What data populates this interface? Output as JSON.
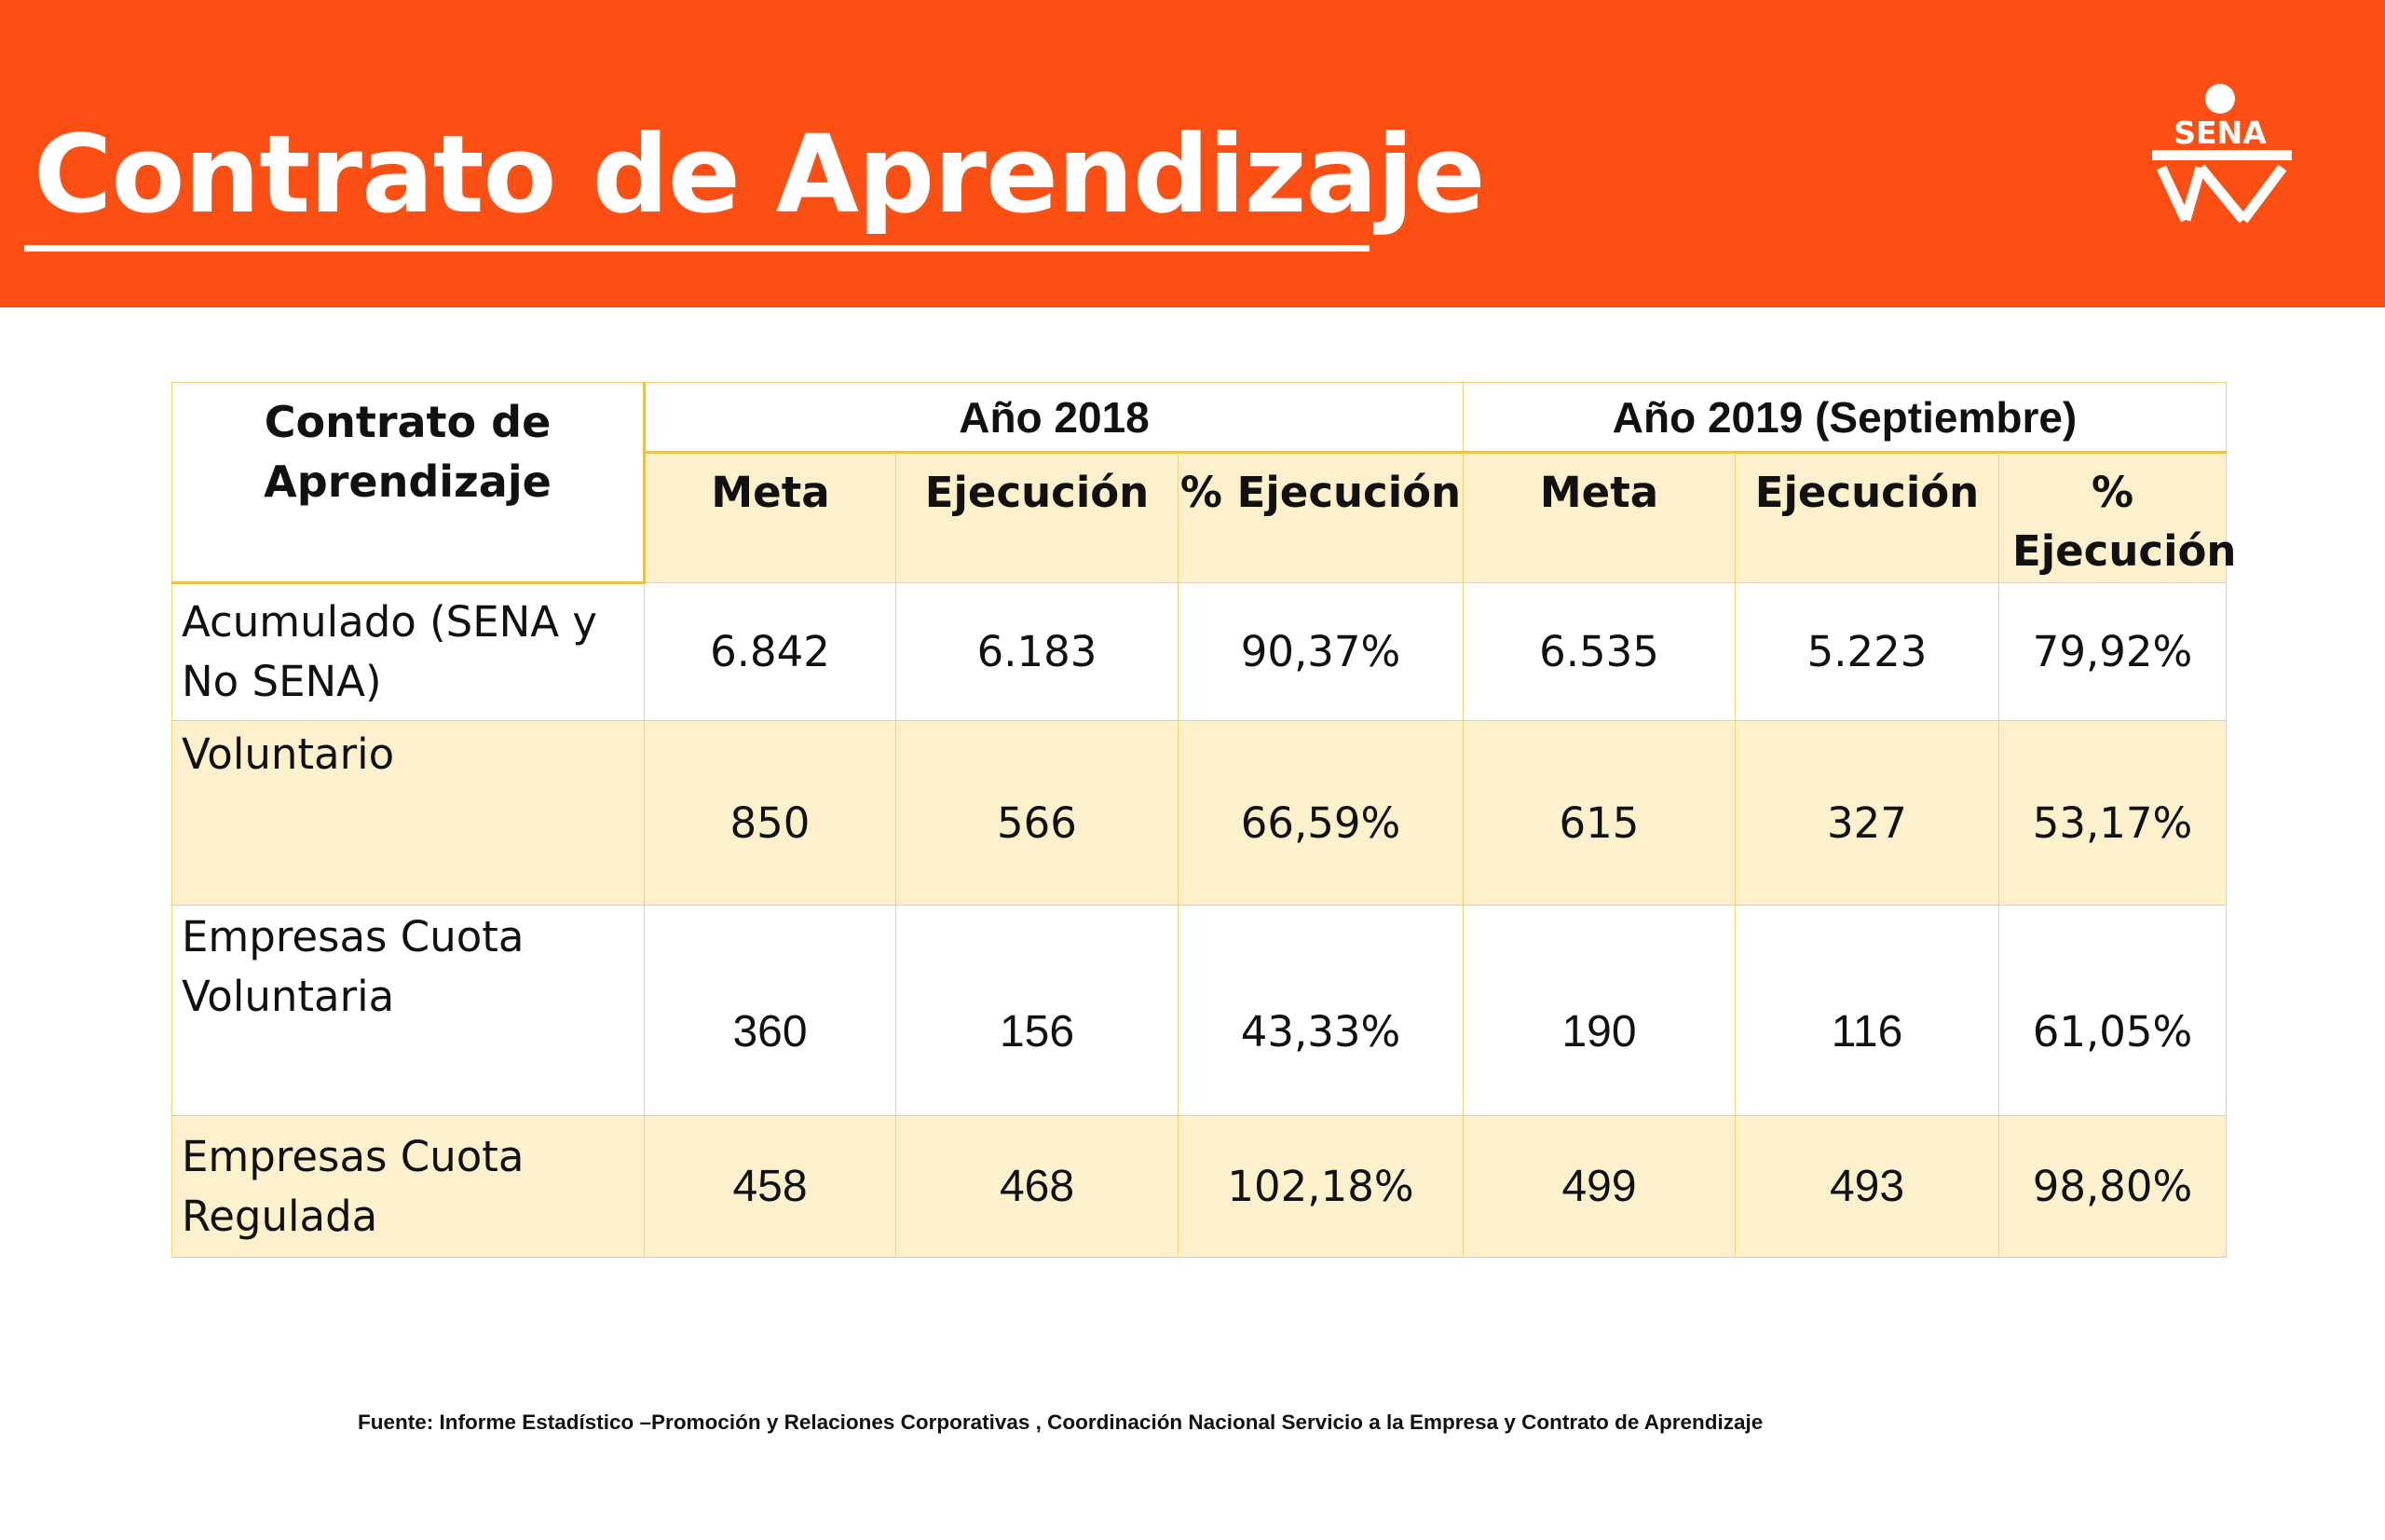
{
  "header": {
    "title": "Contrato de Aprendizaje",
    "logo_text": "SENA",
    "background_color": "#fb4f14"
  },
  "table": {
    "corner_label": "Contrato de Aprendizaje",
    "years": [
      "Año 2018",
      "Año 2019 (Septiembre)"
    ],
    "subheaders": [
      "Meta",
      "Ejecución",
      "% Ejecución",
      "Meta",
      "Ejecución",
      "% Ejecución"
    ],
    "rows": [
      {
        "label": "Acumulado (SENA y No SENA)",
        "values": [
          "6.842",
          "6.183",
          "90,37%",
          "6.535",
          "5.223",
          "79,92%"
        ]
      },
      {
        "label": "Voluntario",
        "values": [
          "850",
          "566",
          "66,59%",
          "615",
          "327",
          "53,17%"
        ]
      },
      {
        "label": "Empresas Cuota Voluntaria",
        "values": [
          "360",
          "156",
          "43,33%",
          "190",
          "116",
          "61,05%"
        ]
      },
      {
        "label": "Empresas Cuota Regulada",
        "values": [
          "458",
          "468",
          "102,18%",
          "499",
          "493",
          "98,80%"
        ]
      }
    ]
  },
  "footer": {
    "source": "Fuente: Informe Estadístico –Promoción y Relaciones Corporativas , Coordinación Nacional Servicio a la Empresa y Contrato de Aprendizaje"
  }
}
